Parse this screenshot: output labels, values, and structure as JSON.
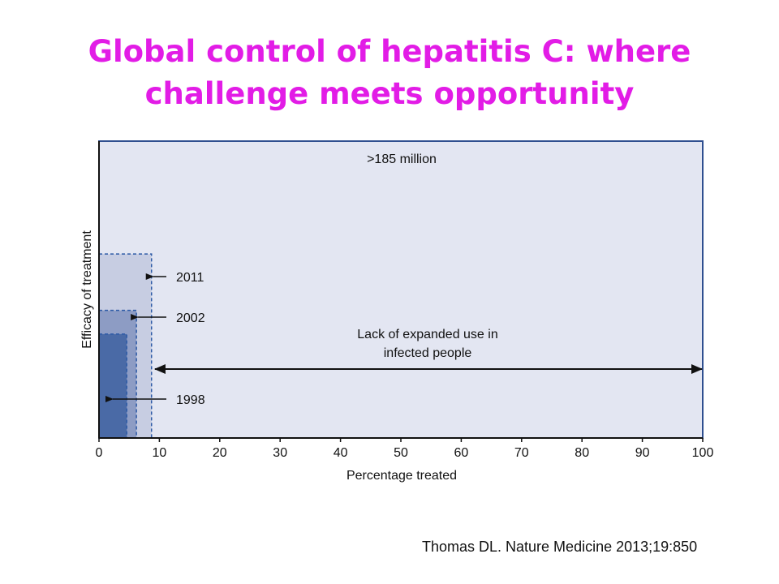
{
  "slide": {
    "title_line1": "Global control of hepatitis C: where",
    "title_line2": "challenge meets opportunity",
    "citation": "Thomas DL. Nature Medicine 2013;19:850"
  },
  "colors": {
    "title": "#e21ce6",
    "plot_background": "#e3e6f2",
    "box_2011": "#c7cde2",
    "box_2002": "#8d9cc4",
    "box_1998": "#4a6aa6",
    "border": "#2f4f90",
    "dashed": "#2d5aa6",
    "axis": "#111111"
  },
  "chart_data": {
    "type": "bar",
    "xlabel": "Percentage treated",
    "ylabel": "Efficacy of treatment",
    "xlim": [
      0,
      100
    ],
    "x_ticks": [
      0,
      10,
      20,
      30,
      40,
      50,
      60,
      70,
      80,
      90,
      100
    ],
    "y_ticks_shown": false,
    "infected_label": ">185 million",
    "series": [
      {
        "name": "2011",
        "percentage_treated": 8.7,
        "efficacy_fraction": 0.62
      },
      {
        "name": "2002",
        "percentage_treated": 6.2,
        "efficacy_fraction": 0.43
      },
      {
        "name": "1998",
        "percentage_treated": 4.6,
        "efficacy_fraction": 0.35
      }
    ],
    "annotation": {
      "line1": "Lack of expanded use in",
      "line2": "infected people",
      "arrow_from": 9,
      "arrow_to": 100
    }
  }
}
